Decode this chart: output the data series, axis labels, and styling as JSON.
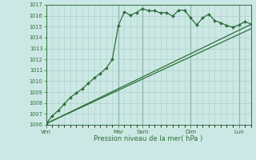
{
  "xlabel": "Pression niveau de la mer( hPa )",
  "bg_color": "#cce8e4",
  "grid_color": "#aacfca",
  "line_color": "#2d6e3a",
  "vline_color": "#4a7a6a",
  "ylim": [
    1006,
    1017
  ],
  "yticks": [
    1006,
    1007,
    1008,
    1009,
    1010,
    1011,
    1012,
    1013,
    1014,
    1015,
    1016,
    1017
  ],
  "xlim": [
    0,
    34
  ],
  "day_labels": [
    "Ven",
    "Mar",
    "Sam",
    "Dim",
    "Lun"
  ],
  "day_positions": [
    0,
    12,
    16,
    24,
    32
  ],
  "line1_x": [
    0,
    1,
    2,
    3,
    4,
    5,
    6,
    7,
    8,
    9,
    10,
    11,
    12,
    13,
    14,
    15,
    16,
    17,
    18,
    19,
    20,
    21,
    22,
    23,
    24,
    25,
    26,
    27,
    28,
    29,
    30,
    31,
    32,
    33,
    34
  ],
  "line1_y": [
    1006.1,
    1006.8,
    1007.3,
    1007.9,
    1008.5,
    1008.9,
    1009.3,
    1009.8,
    1010.3,
    1010.7,
    1011.2,
    1012.0,
    1015.1,
    1016.35,
    1016.05,
    1016.3,
    1016.65,
    1016.45,
    1016.45,
    1016.25,
    1016.3,
    1015.95,
    1016.5,
    1016.5,
    1015.8,
    1015.15,
    1015.8,
    1016.15,
    1015.55,
    1015.35,
    1015.1,
    1014.95,
    1015.15,
    1015.45,
    1015.25
  ],
  "line2_x": [
    0,
    34
  ],
  "line2_y": [
    1006.1,
    1015.2
  ],
  "line3_x": [
    0,
    34
  ],
  "line3_y": [
    1006.1,
    1014.8
  ]
}
